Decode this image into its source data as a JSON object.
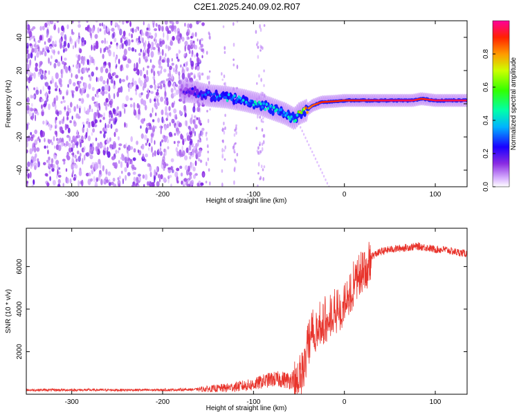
{
  "title": "C2E1.2025.240.09.02.R07",
  "colors": {
    "snr_line": "#e8332b",
    "track_low": "#1a00ff",
    "track_mid": "#00ffcc",
    "track_high": "#ff1a1a",
    "noise": "#7a2bff"
  },
  "chart_data": [
    {
      "type": "heatmap",
      "title": "C2E1.2025.240.09.02.R07",
      "xlabel": "Height of straight line (km)",
      "ylabel": "Frequency (Hz)",
      "xlim": [
        -350,
        135
      ],
      "ylim": [
        -50,
        50
      ],
      "xticks": [
        -300,
        -200,
        -100,
        0,
        100
      ],
      "yticks": [
        -40,
        -20,
        0,
        20,
        40
      ],
      "colorbar": {
        "label": "Normalized spectral amplitude",
        "range": [
          0,
          1
        ],
        "ticks": [
          0,
          0.2,
          0.4,
          0.6,
          0.8
        ]
      },
      "tone_track": {
        "x": [
          -180,
          -165,
          -150,
          -130,
          -110,
          -95,
          -80,
          -65,
          -55,
          -50,
          -42,
          -35,
          -25,
          -10,
          0,
          20,
          50,
          75,
          85,
          100,
          120,
          135
        ],
        "freq": [
          8,
          7,
          5,
          4,
          2,
          0,
          -3,
          -6,
          -9,
          -6,
          -4,
          -1,
          1,
          1.5,
          2,
          2,
          2,
          2,
          3,
          2,
          2,
          2
        ],
        "amplitude": [
          0.15,
          0.25,
          0.35,
          0.4,
          0.4,
          0.45,
          0.45,
          0.4,
          0.5,
          0.7,
          0.8,
          0.85,
          0.9,
          0.9,
          0.9,
          0.92,
          0.95,
          0.95,
          0.9,
          0.95,
          0.95,
          0.95
        ]
      }
    },
    {
      "type": "line",
      "xlabel": "Height of straight line (km)",
      "ylabel": "SNR (10 * v/v)",
      "xlim": [
        -350,
        135
      ],
      "ylim": [
        0,
        7800
      ],
      "xticks": [
        -300,
        -200,
        -100,
        0,
        100
      ],
      "yticks": [
        2000,
        4000,
        6000
      ],
      "series": [
        {
          "name": "SNR",
          "x": [
            -350,
            -300,
            -250,
            -200,
            -170,
            -150,
            -130,
            -110,
            -100,
            -90,
            -80,
            -70,
            -60,
            -50,
            -45,
            -40,
            -35,
            -30,
            -25,
            -20,
            -15,
            -10,
            -5,
            0,
            5,
            10,
            15,
            20,
            25,
            30,
            40,
            50,
            60,
            70,
            80,
            90,
            100,
            110,
            120,
            135
          ],
          "y": [
            200,
            200,
            200,
            200,
            220,
            250,
            300,
            400,
            450,
            600,
            700,
            700,
            650,
            900,
            1500,
            2600,
            3300,
            3400,
            3500,
            3800,
            3900,
            4100,
            4200,
            4500,
            5000,
            5400,
            5700,
            6000,
            6300,
            6500,
            6700,
            6800,
            6850,
            6900,
            6950,
            6900,
            6800,
            6800,
            6700,
            6600
          ]
        }
      ]
    }
  ]
}
